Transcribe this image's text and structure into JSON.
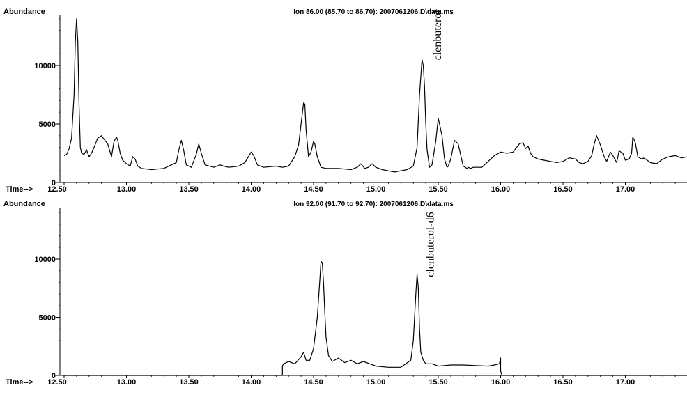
{
  "chart_data": [
    {
      "type": "line",
      "title": "Ion  86.00 (85.70 to 86.70): 2007061206.D\\data.ms",
      "ylabel": "Abundance",
      "xlabel_prefix": "Time-->",
      "x_ticks": [
        "12.50",
        "13.00",
        "13.50",
        "14.00",
        "14.50",
        "15.00",
        "15.50",
        "16.00",
        "16.50",
        "17.00"
      ],
      "y_ticks": [
        "0",
        "5000",
        "10000"
      ],
      "xlim": [
        12.5,
        17.5
      ],
      "ylim": [
        0,
        14500
      ],
      "annotation": {
        "text": "clenbuterol",
        "x": 15.4,
        "y": 10700
      },
      "series": [
        {
          "x": [
            12.5,
            12.52,
            12.54,
            12.56,
            12.58,
            12.59,
            12.6,
            12.61,
            12.62,
            12.63,
            12.64,
            12.66,
            12.68,
            12.7,
            12.72,
            12.74,
            12.77,
            12.8,
            12.82,
            12.85,
            12.88,
            12.9,
            12.92,
            12.93,
            12.95,
            12.97,
            13.0,
            13.03,
            13.05,
            13.07,
            13.09,
            13.12,
            13.2,
            13.3,
            13.4,
            13.42,
            13.44,
            13.46,
            13.48,
            13.52,
            13.56,
            13.58,
            13.6,
            13.63,
            13.7,
            13.75,
            13.78,
            13.82,
            13.9,
            13.95,
            14.0,
            14.02,
            14.05,
            14.1,
            14.2,
            14.25,
            14.3,
            14.35,
            14.38,
            14.4,
            14.42,
            14.43,
            14.44,
            14.46,
            14.48,
            14.5,
            14.51,
            14.53,
            14.56,
            14.6,
            14.7,
            14.8,
            14.85,
            14.88,
            14.91,
            14.94,
            14.97,
            15.0,
            15.05,
            15.1,
            15.15,
            15.2,
            15.25,
            15.3,
            15.33,
            15.35,
            15.37,
            15.38,
            15.39,
            15.4,
            15.41,
            15.43,
            15.45,
            15.48,
            15.5,
            15.53,
            15.55,
            15.57,
            15.58,
            15.6,
            15.63,
            15.66,
            15.7,
            15.73,
            15.74,
            15.76,
            15.78,
            15.85,
            15.95,
            16.0,
            16.05,
            16.1,
            16.15,
            16.18,
            16.2,
            16.22,
            16.24,
            16.26,
            16.28,
            16.3,
            16.35,
            16.4,
            16.45,
            16.5,
            16.55,
            16.6,
            16.63,
            16.66,
            16.7,
            16.73,
            16.75,
            16.77,
            16.8,
            16.83,
            16.85,
            16.88,
            16.9,
            16.93,
            16.95,
            16.98,
            17.0,
            17.03,
            17.05,
            17.06,
            17.08,
            17.1,
            17.13,
            17.15,
            17.2,
            17.25,
            17.3,
            17.35,
            17.4,
            17.45,
            17.5
          ],
          "y": [
            2300,
            2400,
            2900,
            3800,
            7500,
            12000,
            14000,
            12000,
            6500,
            3000,
            2500,
            2400,
            2800,
            2200,
            2500,
            3000,
            3800,
            4000,
            3700,
            3300,
            2200,
            3500,
            3900,
            3600,
            2500,
            1900,
            1600,
            1400,
            2200,
            2000,
            1400,
            1200,
            1100,
            1200,
            1700,
            2800,
            3600,
            2700,
            1500,
            1300,
            2400,
            3300,
            2500,
            1500,
            1300,
            1500,
            1400,
            1300,
            1400,
            1700,
            2600,
            2300,
            1500,
            1300,
            1400,
            1300,
            1400,
            2200,
            3200,
            5000,
            6800,
            6700,
            4500,
            2200,
            2600,
            3500,
            3300,
            2200,
            1300,
            1200,
            1200,
            1100,
            1300,
            1600,
            1200,
            1300,
            1600,
            1300,
            1100,
            1000,
            900,
            1000,
            1100,
            1400,
            3000,
            7500,
            10500,
            10000,
            8200,
            5000,
            2800,
            1300,
            1500,
            3500,
            5500,
            4000,
            2000,
            1300,
            1400,
            2000,
            3600,
            3300,
            1400,
            1200,
            1300,
            1200,
            1300,
            1300,
            2300,
            2600,
            2500,
            2600,
            3300,
            3400,
            2900,
            3100,
            2500,
            2200,
            2100,
            2000,
            1900,
            1800,
            1700,
            1800,
            2100,
            2000,
            1700,
            1600,
            1800,
            2300,
            3300,
            4000,
            3200,
            2200,
            1800,
            2600,
            2300,
            1700,
            2700,
            2500,
            1900,
            2000,
            2500,
            3900,
            3400,
            2200,
            2000,
            2100,
            1700,
            1600,
            2000,
            2200,
            2300,
            2100,
            2200
          ]
        }
      ]
    },
    {
      "type": "line",
      "title": "Ion  92.00 (91.70 to 92.70): 2007061206.D\\data.ms",
      "ylabel": "Abundance",
      "xlabel_prefix": "Time-->",
      "x_ticks": [
        "12.50",
        "13.00",
        "13.50",
        "14.00",
        "14.50",
        "15.00",
        "15.50",
        "16.00",
        "16.50",
        "17.00"
      ],
      "y_ticks": [
        "0",
        "5000",
        "10000"
      ],
      "xlim": [
        12.5,
        17.5
      ],
      "ylim": [
        0,
        14500
      ],
      "annotation": {
        "text": "clenbuterol-d6",
        "x": 15.34,
        "y": 8700
      },
      "series": [
        {
          "x": [
            12.5,
            14.25,
            14.25,
            14.26,
            14.3,
            14.35,
            14.4,
            14.42,
            14.44,
            14.47,
            14.5,
            14.53,
            14.55,
            14.56,
            14.57,
            14.58,
            14.59,
            14.6,
            14.62,
            14.65,
            14.7,
            14.75,
            14.8,
            14.85,
            14.9,
            14.95,
            15.0,
            15.1,
            15.2,
            15.28,
            15.3,
            15.32,
            15.33,
            15.34,
            15.35,
            15.36,
            15.38,
            15.4,
            15.45,
            15.5,
            15.6,
            15.7,
            15.8,
            15.9,
            15.95,
            15.99,
            16.0,
            16.0,
            16.01,
            17.5
          ],
          "y": [
            0,
            0,
            800,
            1000,
            1200,
            1000,
            1600,
            2000,
            1300,
            1300,
            2300,
            5000,
            8200,
            9800,
            9700,
            8000,
            5500,
            3300,
            1700,
            1200,
            1500,
            1100,
            1300,
            1000,
            1200,
            1000,
            800,
            700,
            700,
            1300,
            3000,
            7000,
            8700,
            7500,
            4000,
            2000,
            1300,
            1000,
            1000,
            800,
            900,
            900,
            850,
            800,
            900,
            1000,
            1500,
            400,
            0,
            0
          ]
        }
      ]
    }
  ]
}
